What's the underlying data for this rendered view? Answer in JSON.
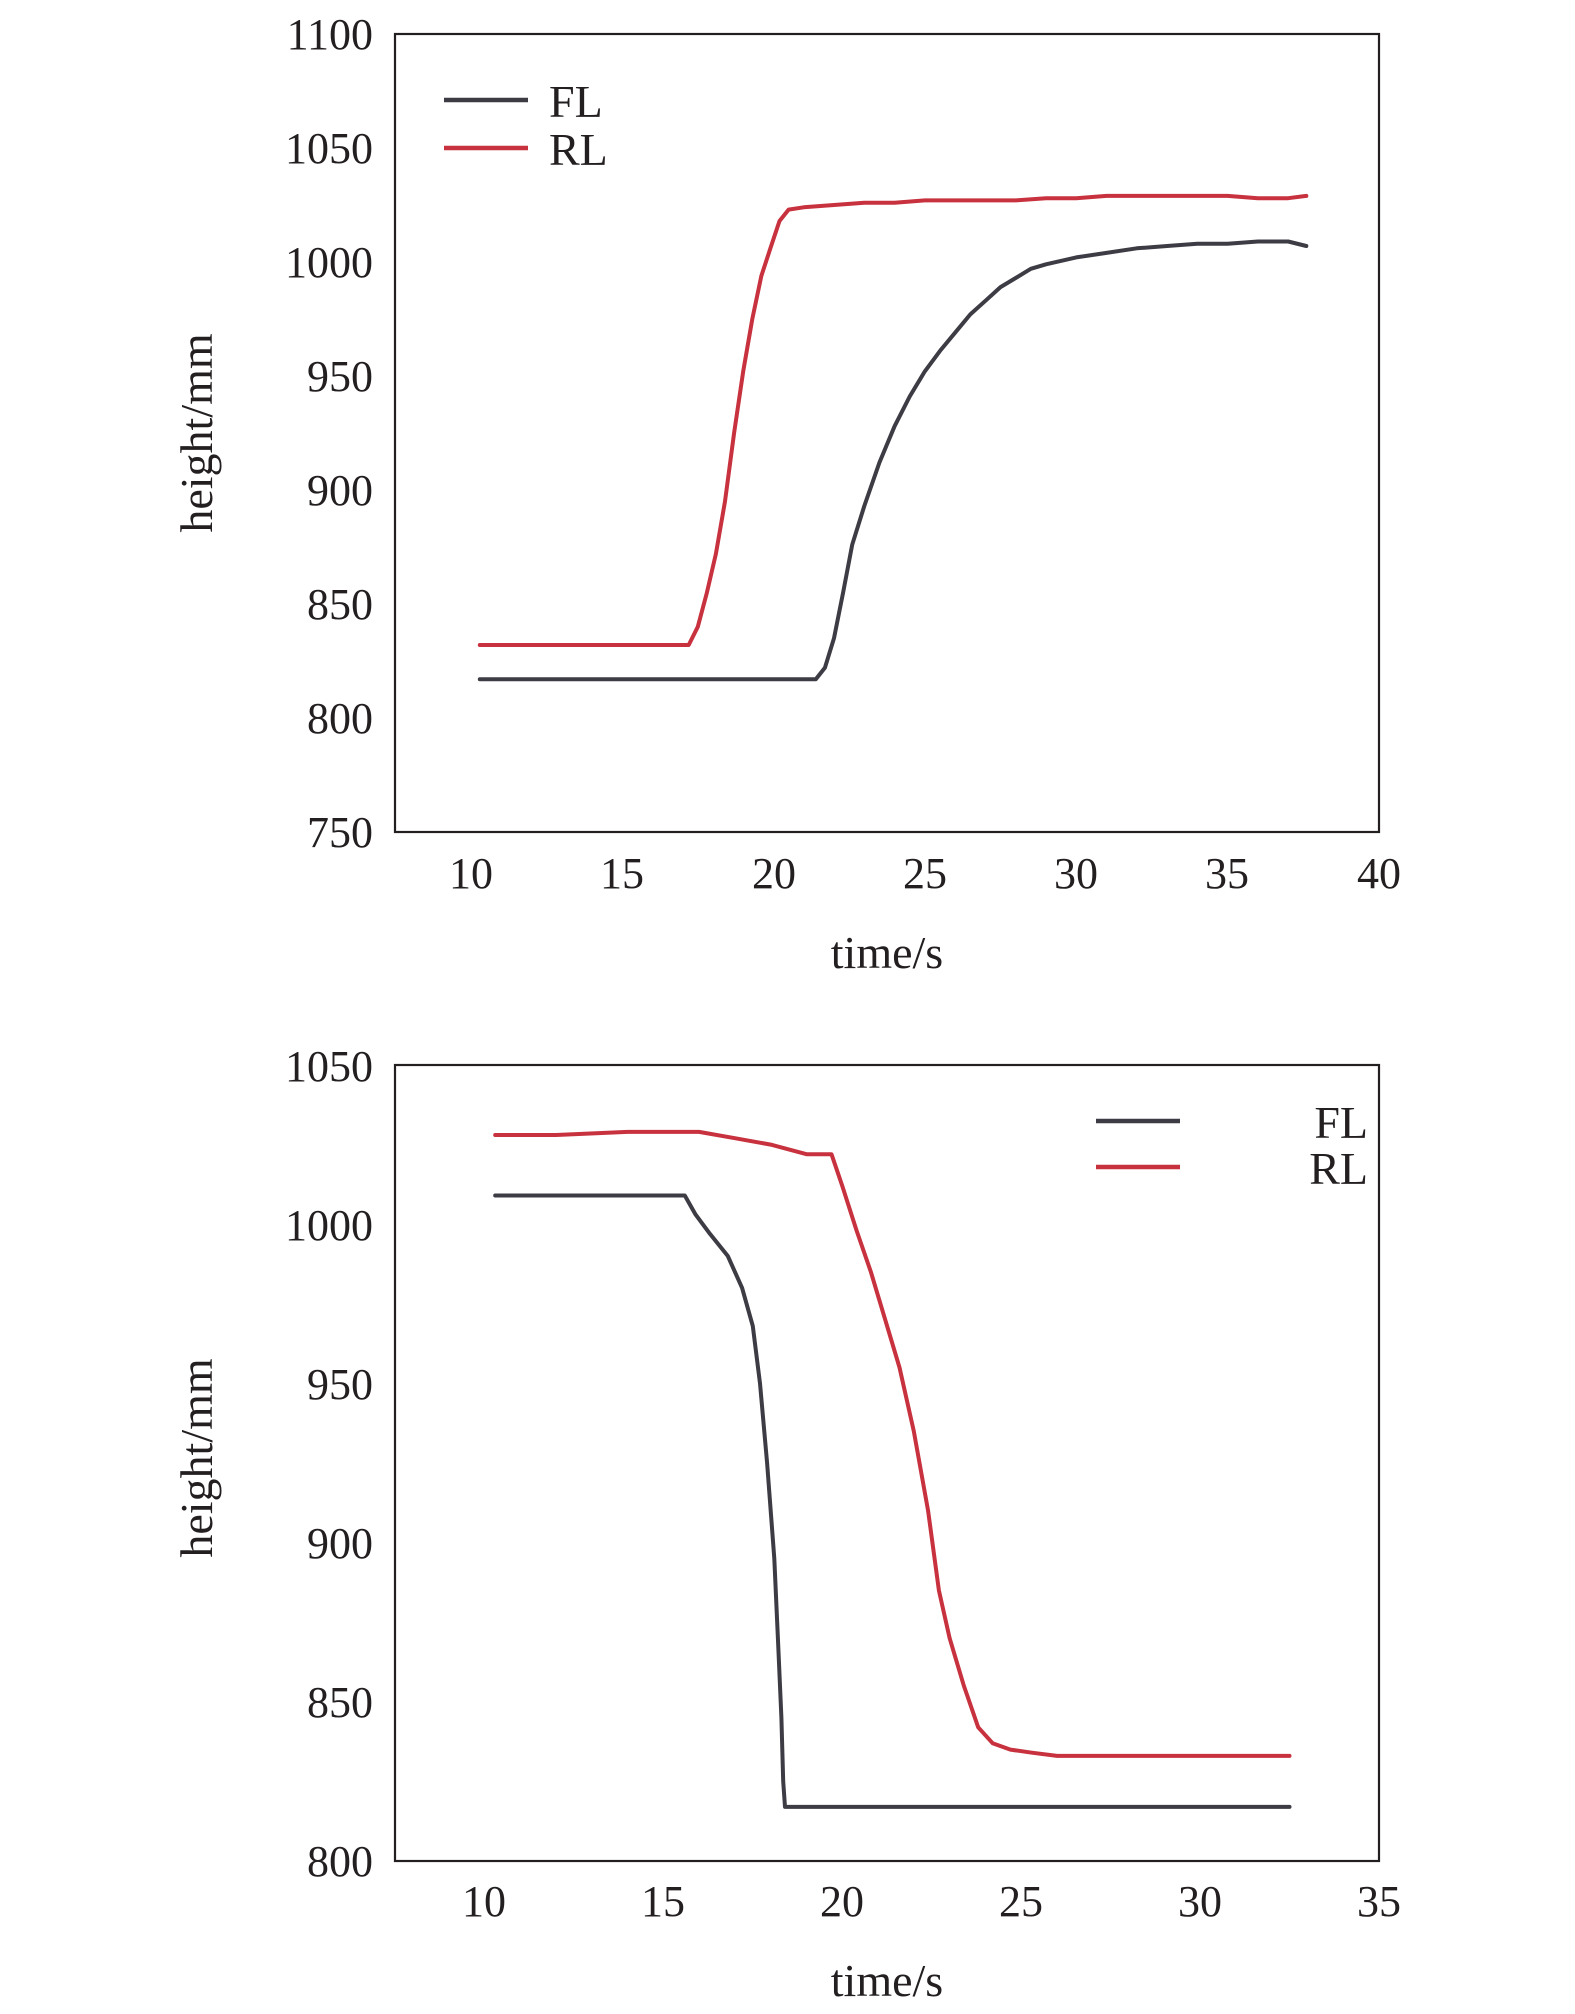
{
  "chart_data": [
    {
      "type": "line",
      "title": "",
      "xlabel": "time/s",
      "ylabel": "height/mm",
      "xlim": [
        7.5,
        40
      ],
      "ylim": [
        750,
        1100
      ],
      "xticks": [
        "10",
        "15",
        "20",
        "25",
        "30",
        "35",
        "40"
      ],
      "yticks": [
        "750",
        "800",
        "850",
        "900",
        "950",
        "1000",
        "1050",
        "1100"
      ],
      "legend_position": "top-left",
      "grid": false,
      "series": [
        {
          "name": "FL",
          "color": "#3d3c44",
          "x": [
            10.3,
            21.4,
            21.7,
            22.0,
            22.3,
            22.6,
            23.0,
            23.5,
            24.0,
            24.5,
            25.0,
            25.5,
            26.0,
            26.5,
            27.0,
            27.5,
            28.0,
            28.5,
            29.0,
            30.0,
            31.0,
            32.0,
            33.0,
            34.0,
            35.0,
            36.0,
            37.0,
            37.6
          ],
          "y": [
            817,
            817,
            822,
            835,
            855,
            876,
            893,
            912,
            928,
            941,
            952,
            961,
            969,
            977,
            983,
            989,
            993,
            997,
            999,
            1002,
            1004,
            1006,
            1007,
            1008,
            1008,
            1009,
            1009,
            1007
          ]
        },
        {
          "name": "RL",
          "color": "#c8313e",
          "x": [
            10.3,
            17.2,
            17.5,
            17.8,
            18.1,
            18.4,
            18.7,
            19.0,
            19.3,
            19.6,
            19.9,
            20.2,
            20.5,
            21.0,
            22.0,
            23.0,
            24.0,
            25.0,
            26.0,
            27.0,
            28.0,
            29.0,
            30.0,
            31.0,
            32.0,
            33.0,
            34.0,
            35.0,
            36.0,
            37.0,
            37.6
          ],
          "y": [
            832,
            832,
            840,
            855,
            872,
            895,
            925,
            952,
            975,
            994,
            1006,
            1018,
            1023,
            1024,
            1025,
            1026,
            1026,
            1027,
            1027,
            1027,
            1027,
            1028,
            1028,
            1029,
            1029,
            1029,
            1029,
            1029,
            1028,
            1028,
            1029
          ]
        }
      ]
    },
    {
      "type": "line",
      "title": "",
      "xlabel": "time/s",
      "ylabel": "height/mm",
      "xlim": [
        7.5,
        35
      ],
      "ylim": [
        800,
        1050
      ],
      "xticks": [
        "10",
        "15",
        "20",
        "25",
        "30",
        "35"
      ],
      "yticks": [
        "800",
        "850",
        "900",
        "950",
        "1000",
        "1050"
      ],
      "legend_position": "top-right",
      "grid": false,
      "series": [
        {
          "name": "FL",
          "color": "#3d3c44",
          "x": [
            10.3,
            15.6,
            15.9,
            16.3,
            16.8,
            17.2,
            17.5,
            17.7,
            17.9,
            18.1,
            18.2,
            18.3,
            18.35,
            18.4,
            20.0,
            25.0,
            30.0,
            32.5
          ],
          "y": [
            1009,
            1009,
            1003,
            997,
            990,
            980,
            968,
            950,
            925,
            895,
            870,
            845,
            825,
            817,
            817,
            817,
            817,
            817
          ]
        },
        {
          "name": "RL",
          "color": "#c8313e",
          "x": [
            10.3,
            12.0,
            14.0,
            16.0,
            17.0,
            18.0,
            19.0,
            19.7,
            20.0,
            20.4,
            20.8,
            21.2,
            21.6,
            22.0,
            22.4,
            22.7,
            23.0,
            23.4,
            23.8,
            24.2,
            24.7,
            25.3,
            26.0,
            27.0,
            30.0,
            32.5
          ],
          "y": [
            1028,
            1028,
            1029,
            1029,
            1027,
            1025,
            1022,
            1022,
            1012,
            998,
            985,
            970,
            955,
            935,
            910,
            885,
            870,
            855,
            842,
            837,
            835,
            834,
            833,
            833,
            833,
            833
          ]
        }
      ]
    }
  ]
}
